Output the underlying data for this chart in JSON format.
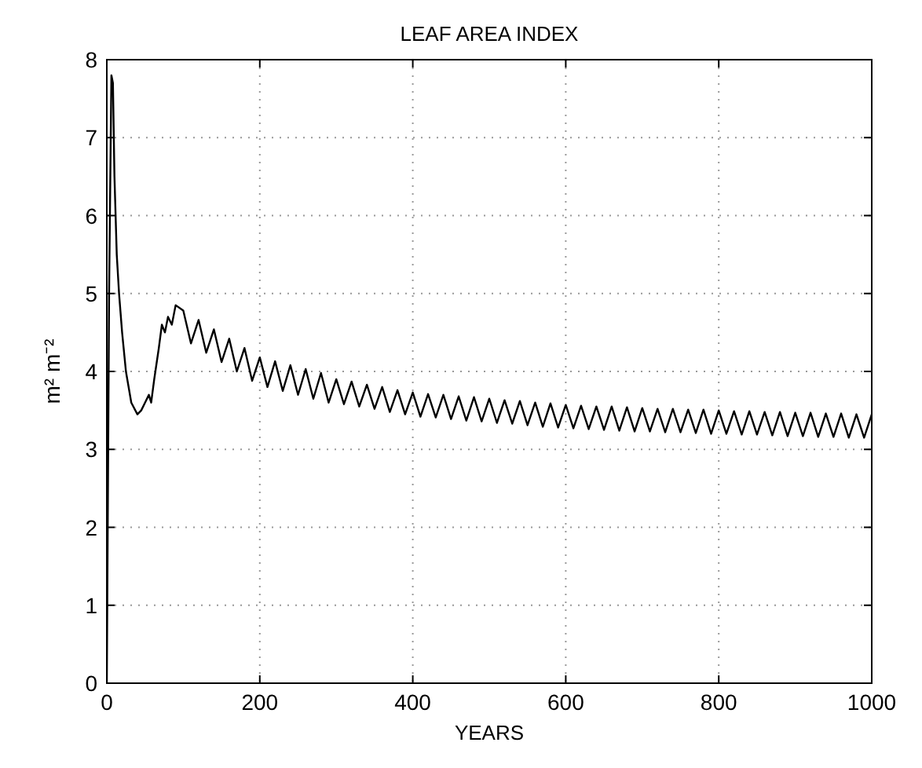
{
  "chart_data": {
    "type": "line",
    "title": "LEAF AREA INDEX",
    "xlabel": "YEARS",
    "ylabel": "m² m⁻²",
    "xlim": [
      0,
      1000
    ],
    "xticks": [
      0,
      200,
      400,
      600,
      800,
      1000
    ],
    "ylim": [
      0,
      8
    ],
    "yticks": [
      0,
      1,
      2,
      3,
      4,
      5,
      6,
      7,
      8
    ],
    "grid": true,
    "line_style": "solid",
    "marker": "none",
    "series": [
      {
        "color": "#000000",
        "x": [
          0,
          3,
          6,
          8,
          10,
          13,
          16,
          20,
          25,
          32,
          40,
          45,
          50,
          55,
          58,
          62,
          68,
          72,
          76,
          80,
          85,
          90,
          100,
          110,
          120,
          130,
          140,
          150,
          160,
          170,
          180,
          190,
          200,
          210,
          220,
          230,
          240,
          250,
          260,
          270,
          280,
          290,
          300,
          310,
          320,
          330,
          340,
          350,
          360,
          370,
          380,
          390,
          400,
          410,
          420,
          430,
          440,
          450,
          460,
          470,
          480,
          490,
          500,
          510,
          520,
          530,
          540,
          550,
          560,
          570,
          580,
          590,
          600,
          610,
          620,
          630,
          640,
          650,
          660,
          670,
          680,
          690,
          700,
          710,
          720,
          730,
          740,
          750,
          760,
          770,
          780,
          790,
          800,
          810,
          820,
          830,
          840,
          850,
          860,
          870,
          880,
          890,
          900,
          910,
          920,
          930,
          940,
          950,
          960,
          970,
          980,
          990,
          1000
        ],
        "values": [
          0,
          5,
          7.8,
          7.7,
          6.5,
          5.5,
          5,
          4.5,
          4,
          3.6,
          3.45,
          3.5,
          3.6,
          3.7,
          3.6,
          3.9,
          4.3,
          4.6,
          4.5,
          4.7,
          4.6,
          4.85,
          4.78,
          4.36,
          4.66,
          4.24,
          4.54,
          4.12,
          4.42,
          4,
          4.3,
          3.88,
          4.18,
          3.8,
          4.13,
          3.75,
          4.08,
          3.7,
          4.03,
          3.65,
          3.98,
          3.6,
          3.9,
          3.58,
          3.87,
          3.55,
          3.83,
          3.52,
          3.8,
          3.48,
          3.76,
          3.45,
          3.73,
          3.42,
          3.71,
          3.41,
          3.7,
          3.39,
          3.68,
          3.37,
          3.67,
          3.36,
          3.65,
          3.34,
          3.63,
          3.33,
          3.62,
          3.31,
          3.6,
          3.29,
          3.59,
          3.28,
          3.57,
          3.27,
          3.56,
          3.26,
          3.55,
          3.25,
          3.55,
          3.24,
          3.54,
          3.23,
          3.53,
          3.23,
          3.52,
          3.22,
          3.52,
          3.22,
          3.51,
          3.21,
          3.51,
          3.2,
          3.5,
          3.2,
          3.49,
          3.19,
          3.49,
          3.19,
          3.48,
          3.18,
          3.48,
          3.17,
          3.47,
          3.17,
          3.47,
          3.16,
          3.46,
          3.16,
          3.46,
          3.15,
          3.45,
          3.15,
          3.45
        ]
      }
    ]
  }
}
